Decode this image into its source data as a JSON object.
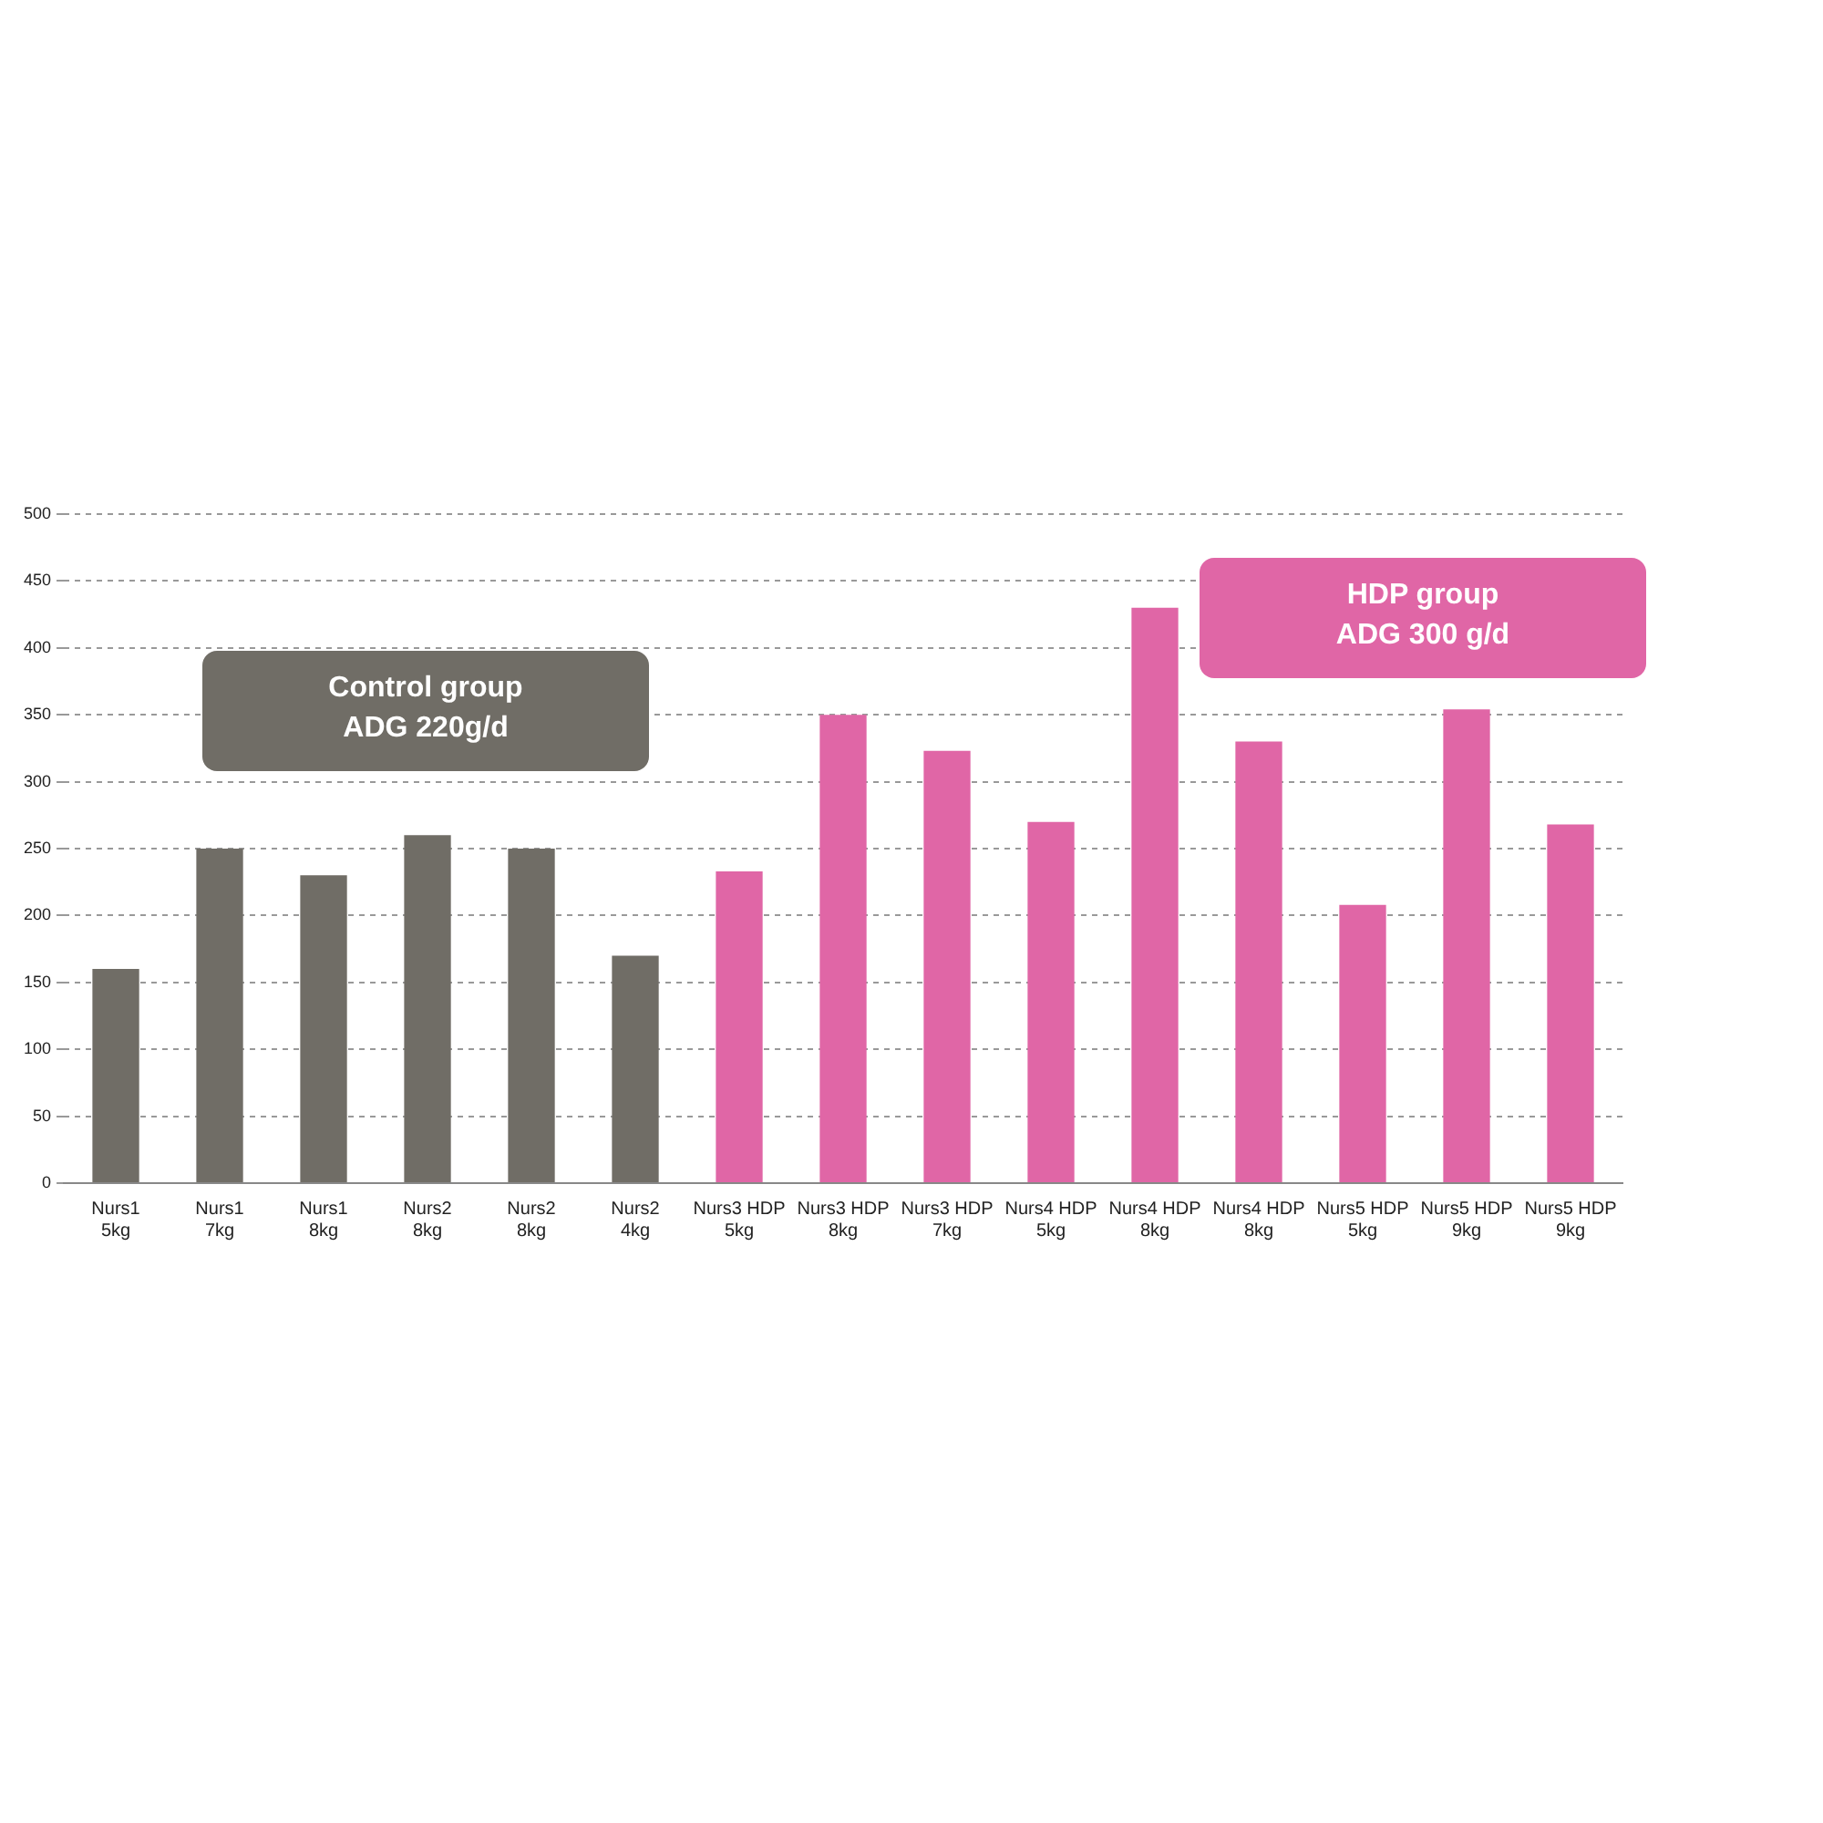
{
  "chart_data": {
    "type": "bar",
    "categories": [
      "Nurs1 5kg",
      "Nurs1 7kg",
      "Nurs1 8kg",
      "Nurs2 8kg",
      "Nurs2 8kg",
      "Nurs2 4kg",
      "Nurs3 HDP 5kg",
      "Nurs3 HDP 8kg",
      "Nurs3 HDP 7kg",
      "Nurs4 HDP 5kg",
      "Nurs4 HDP 8kg",
      "Nurs4 HDP 8kg",
      "Nurs5 HDP 5kg",
      "Nurs5 HDP 9kg",
      "Nurs5 HDP 9kg"
    ],
    "values": [
      160,
      250,
      230,
      260,
      250,
      170,
      233,
      350,
      323,
      270,
      430,
      330,
      208,
      354,
      268
    ],
    "colors": [
      "#706d66",
      "#706d66",
      "#706d66",
      "#706d66",
      "#706d66",
      "#706d66",
      "#e066a6",
      "#e066a6",
      "#e066a6",
      "#e066a6",
      "#e066a6",
      "#e066a6",
      "#e066a6",
      "#e066a6",
      "#e066a6"
    ],
    "ylim": [
      0,
      500
    ],
    "yticks": [
      0,
      50,
      100,
      150,
      200,
      250,
      300,
      350,
      400,
      450,
      500
    ],
    "grid": "y",
    "annotations": [
      "Control group\nADG 220g/d",
      "HDP group\nADG 300 g/d"
    ]
  }
}
